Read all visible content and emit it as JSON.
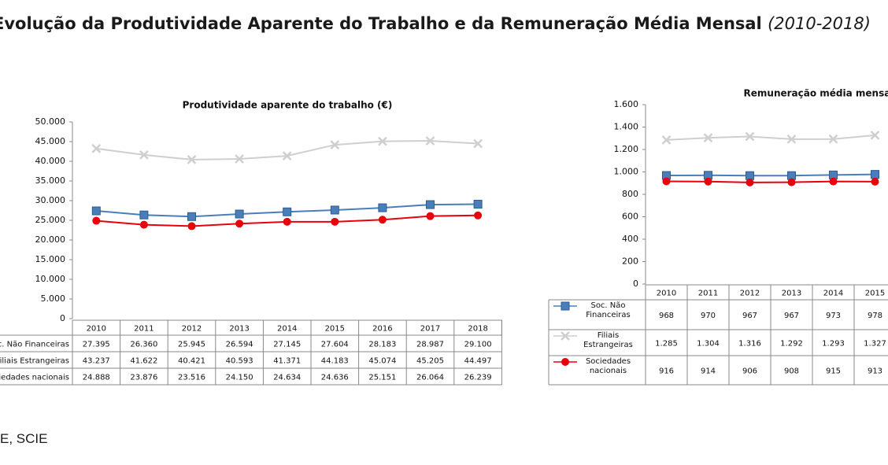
{
  "title": "Evolução da Produtividade Aparente do Trabalho e da Remuneração Média Mensal",
  "title_period": "(2010-2018)",
  "source": "E, SCIE",
  "chart_data": [
    {
      "type": "line",
      "title": "Produtividade aparente do trabalho (€)",
      "categories": [
        "2010",
        "2011",
        "2012",
        "2013",
        "2014",
        "2015",
        "2016",
        "2017",
        "2018"
      ],
      "ylim": [
        0,
        50000
      ],
      "yticks": [
        0,
        {
          "value": 5000,
          "label": "5.000"
        },
        {
          "value": 10000,
          "label": "10.000"
        },
        {
          "value": 15000,
          "label": "15.000"
        },
        {
          "value": 20000,
          "label": "20.000"
        },
        {
          "value": 25000,
          "label": "25.000"
        },
        {
          "value": 30000,
          "label": "30.000"
        },
        {
          "value": 35000,
          "label": "35.000"
        },
        {
          "value": 40000,
          "label": "40.000"
        },
        {
          "value": 45000,
          "label": "45.000"
        },
        {
          "value": 50000,
          "label": "50.000"
        }
      ],
      "grid": false,
      "series": [
        {
          "name": "Soc. Não Financeiras",
          "color": "#4a7ebb",
          "marker": "square",
          "values": [
            27395,
            26360,
            25945,
            26594,
            27145,
            27604,
            28183,
            28987,
            29100
          ],
          "value_labels": [
            "27.395",
            "26.360",
            "25.945",
            "26.594",
            "27.145",
            "27.604",
            "28.183",
            "28.987",
            "29.100"
          ]
        },
        {
          "name": "Filiais Estrangeiras",
          "color": "#cfcfcf",
          "marker": "x",
          "values": [
            43237,
            41622,
            40421,
            40593,
            41371,
            44183,
            45074,
            45205,
            44497
          ],
          "value_labels": [
            "43.237",
            "41.622",
            "40.421",
            "40.593",
            "41.371",
            "44.183",
            "45.074",
            "45.205",
            "44.497"
          ]
        },
        {
          "name": "Sociedades nacionais",
          "color": "#e8000b",
          "marker": "circle",
          "values": [
            24888,
            23876,
            23516,
            24150,
            24634,
            24636,
            25151,
            26064,
            26239
          ],
          "value_labels": [
            "24.888",
            "23.876",
            "23.516",
            "24.150",
            "24.634",
            "24.636",
            "25.151",
            "26.064",
            "26.239"
          ]
        }
      ]
    },
    {
      "type": "line",
      "title": "Remuneração média mensal",
      "categories": [
        "2010",
        "2011",
        "2012",
        "2013",
        "2014",
        "2015"
      ],
      "ylim": [
        0,
        1600
      ],
      "yticks": [
        0,
        200,
        400,
        600,
        800,
        {
          "value": 1000,
          "label": "1.000"
        },
        {
          "value": 1200,
          "label": "1.200"
        },
        {
          "value": 1400,
          "label": "1.400"
        },
        {
          "value": 1600,
          "label": "1.600"
        }
      ],
      "grid": false,
      "series": [
        {
          "name": "Soc. Não Financeiras",
          "color": "#4a7ebb",
          "marker": "square",
          "values": [
            968,
            970,
            967,
            967,
            973,
            978
          ]
        },
        {
          "name": "Filiais Estrangeiras",
          "color": "#cfcfcf",
          "marker": "x",
          "values": [
            1285,
            1304,
            1316,
            1292,
            1293,
            1327
          ],
          "value_labels": [
            "1.285",
            "1.304",
            "1.316",
            "1.292",
            "1.293",
            "1.327"
          ]
        },
        {
          "name": "Sociedades nacionais",
          "color": "#e8000b",
          "marker": "circle",
          "values": [
            916,
            914,
            906,
            908,
            915,
            913
          ]
        }
      ]
    }
  ]
}
